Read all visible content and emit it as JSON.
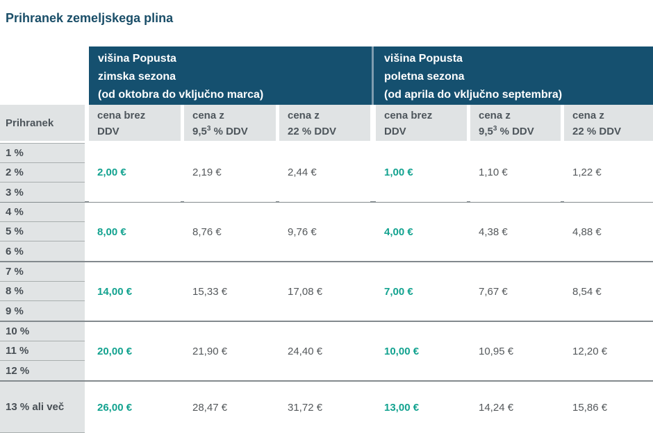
{
  "page_title": "Prihranek zemeljskega plina",
  "colors": {
    "header_background": "#15506f",
    "accent_teal_value": "#12a28f",
    "title_color": "#1a4e68"
  },
  "table": {
    "row_header": "Prihranek",
    "seasons": [
      {
        "line1": "višina Popusta",
        "line2": "zimska sezona",
        "line3": "(od oktobra do vključno marca)"
      },
      {
        "line1": "višina Popusta",
        "line2": "poletna sezona",
        "line3": "(od aprila do vključno septembra)"
      }
    ],
    "col_headers": [
      {
        "line1": "cena brez",
        "line2": "DDV"
      },
      {
        "line1": "cena z",
        "line2_prefix": "9,5",
        "line2_sup": "3",
        "line2_suffix": " % DDV"
      },
      {
        "line1": "cena z",
        "line2": "22 % DDV"
      }
    ],
    "groups": [
      {
        "labels": [
          "1 %",
          "2 %",
          "3 %"
        ],
        "winter": {
          "brez": "2,00 €",
          "vat95": "2,19 €",
          "vat22": "2,44 €"
        },
        "summer": {
          "brez": "1,00 €",
          "vat95": "1,10 €",
          "vat22": "1,22 €"
        }
      },
      {
        "labels": [
          "4 %",
          "5 %",
          "6 %"
        ],
        "winter": {
          "brez": "8,00 €",
          "vat95": "8,76 €",
          "vat22": "9,76 €"
        },
        "summer": {
          "brez": "4,00 €",
          "vat95": "4,38 €",
          "vat22": "4,88 €"
        }
      },
      {
        "labels": [
          "7 %",
          "8 %",
          "9 %"
        ],
        "winter": {
          "brez": "14,00 €",
          "vat95": "15,33 €",
          "vat22": "17,08 €"
        },
        "summer": {
          "brez": "7,00 €",
          "vat95": "7,67 €",
          "vat22": "8,54 €"
        }
      },
      {
        "labels": [
          "10 %",
          "11 %",
          "12 %"
        ],
        "winter": {
          "brez": "20,00 €",
          "vat95": "21,90 €",
          "vat22": "24,40 €"
        },
        "summer": {
          "brez": "10,00 €",
          "vat95": "10,95 €",
          "vat22": "12,20 €"
        }
      },
      {
        "labels": [
          "13 % ali več"
        ],
        "winter": {
          "brez": "26,00 €",
          "vat95": "28,47 €",
          "vat22": "31,72 €"
        },
        "summer": {
          "brez": "13,00 €",
          "vat95": "14,24 €",
          "vat22": "15,86 €"
        }
      }
    ]
  }
}
